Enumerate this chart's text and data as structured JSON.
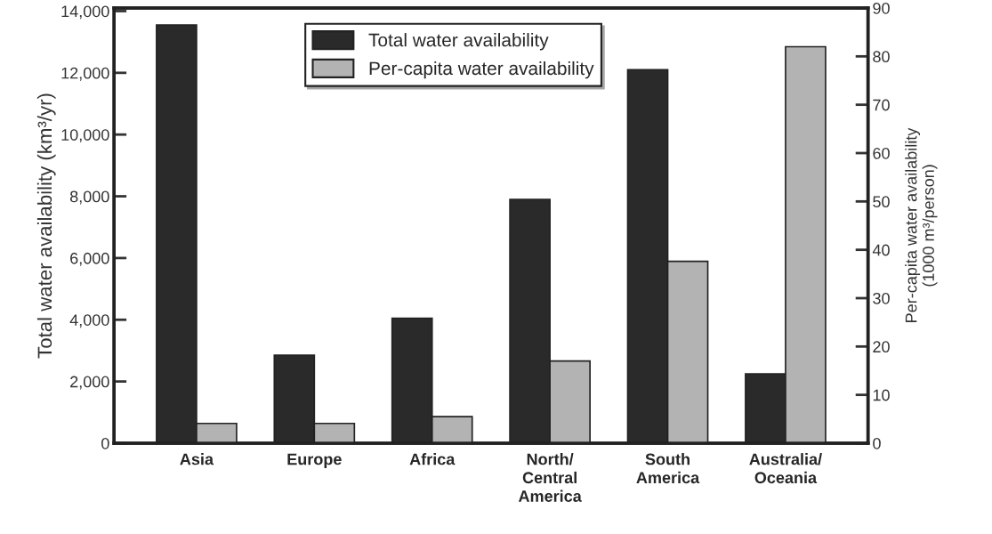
{
  "chart_data": {
    "type": "bar",
    "ylabel": "Total water availability (km³/yr)",
    "y2label": "Per-capita water availability\n(1000 m³/person)",
    "categories": [
      "Asia",
      "Europe",
      "Africa",
      "North/\nCentral\nAmerica",
      "South\nAmerica",
      "Australia/\nOceania"
    ],
    "series": [
      {
        "name": "Total water availability",
        "color": "#2a2a2a",
        "values": [
          13550,
          2850,
          4050,
          7900,
          12100,
          2250
        ]
      },
      {
        "name": "Per-capita water availability",
        "color": "#b3b3b3",
        "axis": "y2",
        "values": [
          4.1,
          4.1,
          5.5,
          17,
          37.6,
          82
        ]
      }
    ],
    "ylim": [
      0,
      14100
    ],
    "yticks": [
      0,
      {
        "value": 2000,
        "label": "2,000"
      },
      {
        "value": 4000,
        "label": "4,000"
      },
      {
        "value": 6000,
        "label": "6,000"
      },
      {
        "value": 8000,
        "label": "8,000"
      },
      {
        "value": 10000,
        "label": "10,000"
      },
      {
        "value": 12000,
        "label": "12,000"
      },
      {
        "value": 14000,
        "label": "14,000"
      }
    ],
    "y2lim": [
      0,
      90
    ],
    "y2ticks": [
      0,
      10,
      20,
      30,
      40,
      50,
      60,
      70,
      80,
      90
    ],
    "legend": "top",
    "grid": false
  }
}
